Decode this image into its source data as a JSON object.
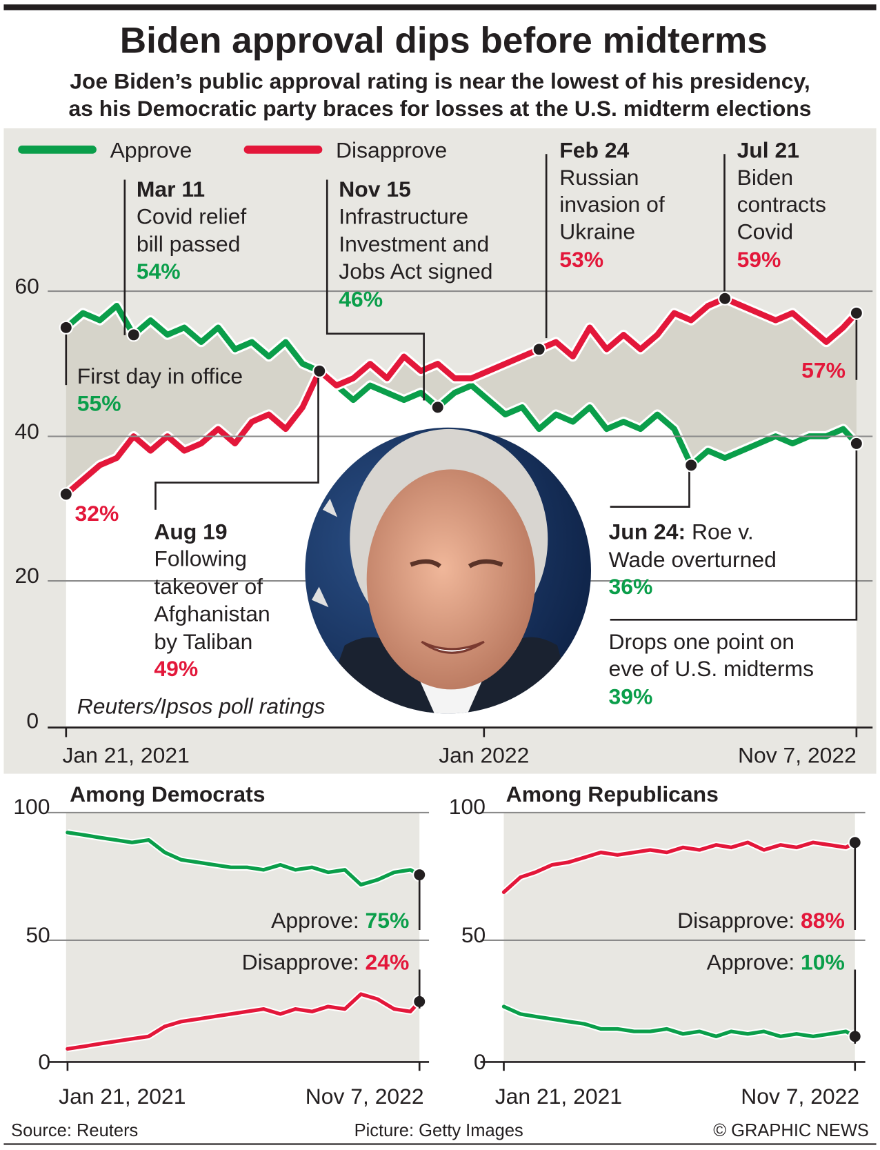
{
  "title": "Biden approval dips before midterms",
  "subtitle": [
    "Joe Biden’s public approval rating is near the lowest of his presidency,",
    "as his Democratic party braces for losses at the U.S. midterm elections"
  ],
  "colors": {
    "approve": "#0a9e4a",
    "disapprove": "#e3173a",
    "panel": "#e8e7e2",
    "band": "#d6d4ca"
  },
  "footer": {
    "source": "Source: Reuters",
    "picture": "Picture: Getty Images",
    "credit": "© GRAPHIC NEWS"
  },
  "photo": {
    "icon": "portrait-photo-joe-biden"
  },
  "chart_data": [
    {
      "type": "line",
      "legend": [
        "Approve",
        "Disapprove"
      ],
      "legend_placement": "top-left",
      "ylim": [
        0,
        60
      ],
      "yticks": [
        "0",
        "20",
        "40",
        "60"
      ],
      "xticks": [
        "Jan 21, 2021",
        "Jan 2022",
        "Nov 7, 2022"
      ],
      "source_note": "Reuters/Ipsos poll ratings",
      "x": [
        "2021-01-21",
        "2021-02-04",
        "2021-02-18",
        "2021-03-04",
        "2021-03-18",
        "2021-04-01",
        "2021-04-15",
        "2021-04-29",
        "2021-05-13",
        "2021-05-27",
        "2021-06-10",
        "2021-06-24",
        "2021-07-08",
        "2021-07-22",
        "2021-08-05",
        "2021-08-19",
        "2021-09-02",
        "2021-09-16",
        "2021-09-30",
        "2021-10-14",
        "2021-10-28",
        "2021-11-11",
        "2021-11-25",
        "2021-12-09",
        "2021-12-23",
        "2022-01-06",
        "2022-01-20",
        "2022-02-03",
        "2022-02-17",
        "2022-03-03",
        "2022-03-17",
        "2022-03-31",
        "2022-04-14",
        "2022-04-28",
        "2022-05-12",
        "2022-05-26",
        "2022-06-09",
        "2022-06-23",
        "2022-07-07",
        "2022-07-21",
        "2022-08-04",
        "2022-08-18",
        "2022-09-01",
        "2022-09-15",
        "2022-09-29",
        "2022-10-13",
        "2022-10-27",
        "2022-11-07"
      ],
      "series": [
        {
          "name": "Approve",
          "values": [
            55,
            57,
            56,
            58,
            54,
            56,
            54,
            55,
            53,
            55,
            52,
            53,
            51,
            53,
            50,
            49,
            47,
            45,
            47,
            46,
            45,
            46,
            44,
            46,
            47,
            45,
            43,
            44,
            41,
            43,
            42,
            44,
            41,
            42,
            41,
            43,
            41,
            36,
            38,
            37,
            38,
            39,
            40,
            39,
            40,
            40,
            41,
            39
          ]
        },
        {
          "name": "Disapprove",
          "values": [
            32,
            34,
            36,
            37,
            40,
            38,
            40,
            38,
            39,
            41,
            39,
            42,
            43,
            41,
            44,
            49,
            47,
            48,
            50,
            48,
            51,
            49,
            50,
            48,
            48,
            49,
            50,
            51,
            52,
            53,
            51,
            55,
            52,
            54,
            52,
            54,
            57,
            56,
            58,
            59,
            58,
            57,
            56,
            57,
            55,
            53,
            55,
            57
          ]
        }
      ],
      "annotations": {
        "first_day": {
          "text": "First day in office",
          "approve": "55%",
          "disapprove": "32%"
        },
        "mar11": {
          "date": "Mar 11",
          "lines": [
            "Covid relief",
            "bill passed"
          ],
          "value": "54%"
        },
        "aug19": {
          "date": "Aug 19",
          "lines": [
            "Following",
            "takeover of",
            "Afghanistan",
            "by Taliban"
          ],
          "value": "49%"
        },
        "nov15": {
          "date": "Nov 15",
          "lines": [
            "Infrastructure",
            "Investment and",
            "Jobs Act signed"
          ],
          "value": "46%"
        },
        "feb24": {
          "date": "Feb 24",
          "lines": [
            "Russian",
            "invasion of",
            "Ukraine"
          ],
          "value": "53%"
        },
        "jun24": {
          "date": "Jun 24:",
          "rest": " Roe v.",
          "lines": [
            "Wade overturned"
          ],
          "value": "36%"
        },
        "jul21": {
          "date": "Jul 21",
          "lines": [
            "Biden",
            "contracts",
            "Covid"
          ],
          "value": "59%"
        },
        "end": {
          "lines": [
            "Drops one point on",
            "eve of U.S. midterms"
          ],
          "approve": "39%",
          "disapprove": "57%"
        }
      }
    },
    {
      "type": "line",
      "title": "Among Democrats",
      "ylim": [
        0,
        100
      ],
      "yticks": [
        "0",
        "50",
        "100"
      ],
      "xticks": [
        "Jan 21, 2021",
        "Nov 7, 2022"
      ],
      "x": [
        "2021-01-21",
        "2021-02-21",
        "2021-03-21",
        "2021-04-21",
        "2021-05-21",
        "2021-06-21",
        "2021-07-21",
        "2021-08-21",
        "2021-09-21",
        "2021-10-21",
        "2021-11-21",
        "2021-12-21",
        "2022-01-21",
        "2022-02-21",
        "2022-03-21",
        "2022-04-21",
        "2022-05-21",
        "2022-06-21",
        "2022-07-21",
        "2022-08-21",
        "2022-09-21",
        "2022-10-21",
        "2022-11-07"
      ],
      "series": [
        {
          "name": "Approve",
          "values": [
            92,
            91,
            90,
            89,
            88,
            89,
            84,
            81,
            80,
            79,
            78,
            78,
            77,
            79,
            77,
            78,
            76,
            77,
            71,
            73,
            76,
            77,
            75
          ],
          "label": "Approve: ",
          "end_label": "75%"
        },
        {
          "name": "Disapprove",
          "values": [
            5,
            6,
            7,
            8,
            9,
            10,
            14,
            16,
            17,
            18,
            19,
            20,
            21,
            19,
            21,
            20,
            22,
            21,
            27,
            25,
            21,
            20,
            24
          ],
          "label": "Disapprove: ",
          "end_label": "24%"
        }
      ]
    },
    {
      "type": "line",
      "title": "Among Republicans",
      "ylim": [
        0,
        100
      ],
      "yticks": [
        "0",
        "50",
        "100"
      ],
      "xticks": [
        "Jan 21, 2021",
        "Nov 7, 2022"
      ],
      "x": [
        "2021-01-21",
        "2021-02-21",
        "2021-03-21",
        "2021-04-21",
        "2021-05-21",
        "2021-06-21",
        "2021-07-21",
        "2021-08-21",
        "2021-09-21",
        "2021-10-21",
        "2021-11-21",
        "2021-12-21",
        "2022-01-21",
        "2022-02-21",
        "2022-03-21",
        "2022-04-21",
        "2022-05-21",
        "2022-06-21",
        "2022-07-21",
        "2022-08-21",
        "2022-09-21",
        "2022-10-21",
        "2022-11-07"
      ],
      "series": [
        {
          "name": "Disapprove",
          "values": [
            68,
            74,
            76,
            79,
            80,
            82,
            84,
            83,
            84,
            85,
            84,
            86,
            85,
            87,
            86,
            88,
            85,
            87,
            86,
            88,
            87,
            86,
            88
          ],
          "label": "Disapprove: ",
          "end_label": "88%"
        },
        {
          "name": "Approve",
          "values": [
            22,
            19,
            18,
            17,
            16,
            15,
            13,
            13,
            12,
            12,
            13,
            11,
            12,
            10,
            12,
            11,
            12,
            10,
            11,
            10,
            11,
            12,
            10
          ],
          "label": "Approve: ",
          "end_label": "10%"
        }
      ]
    }
  ]
}
